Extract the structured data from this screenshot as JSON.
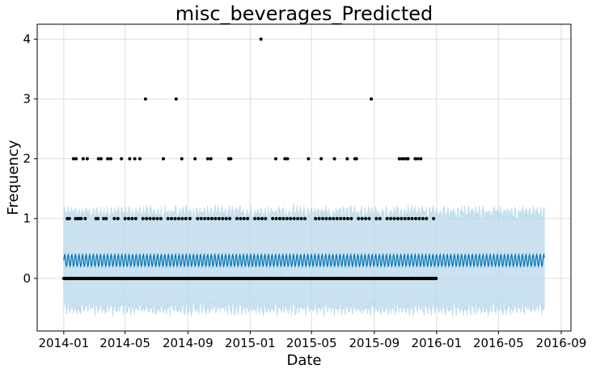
{
  "chart_data": {
    "type": "scatter",
    "title": "misc_beverages_Predicted",
    "xlabel": "Date",
    "ylabel": "Frequency",
    "x_range": [
      "2013-11-10",
      "2016-09-20"
    ],
    "ylim": [
      -0.88,
      4.25
    ],
    "grid": true,
    "x_ticks": [
      "2014-01",
      "2014-05",
      "2014-09",
      "2015-01",
      "2015-05",
      "2015-09",
      "2016-01",
      "2016-05",
      "2016-09"
    ],
    "y_ticks": [
      "0",
      "1",
      "2",
      "3",
      "4"
    ],
    "forecast": {
      "x_start": "2014-01-01",
      "x_end": "2016-07-30",
      "yhat_center": 0.3,
      "yhat_weekly_amplitude": 0.1,
      "upper_center": 1.1,
      "lower_center": -0.5,
      "line_color": "#0072B2",
      "band_color": "#B8D8EA"
    },
    "observations": {
      "x_start": "2014-01-01",
      "x_end": "2015-12-31",
      "point_color": "#000000",
      "zero_count_days": "every day from 2014-01-01 to 2015-12-31 not listed below",
      "value_1_dates": [
        "2014-01-08",
        "2014-01-12",
        "2014-01-20",
        "2014-01-24",
        "2014-01-28",
        "2014-02-01",
        "2014-02-04",
        "2014-02-08",
        "2014-02-12",
        "2014-02-16",
        "2014-03-05",
        "2014-03-09",
        "2014-03-15",
        "2014-03-20",
        "2014-03-25",
        "2014-04-03",
        "2014-04-10",
        "2014-04-17",
        "2014-04-24",
        "2014-05-01",
        "2014-05-08",
        "2014-05-15",
        "2014-05-22",
        "2014-06-05",
        "2014-06-12",
        "2014-06-19",
        "2014-06-26",
        "2014-07-03",
        "2014-07-10",
        "2014-07-24",
        "2014-07-31",
        "2014-08-07",
        "2014-08-14",
        "2014-08-21",
        "2014-08-28",
        "2014-09-05",
        "2014-09-20",
        "2014-09-27",
        "2014-10-04",
        "2014-10-11",
        "2014-10-18",
        "2014-10-25",
        "2014-11-01",
        "2014-11-08",
        "2014-11-15",
        "2014-11-22",
        "2014-12-06",
        "2014-12-13",
        "2014-12-20",
        "2014-12-27",
        "2015-01-10",
        "2015-01-17",
        "2015-01-24",
        "2015-01-31",
        "2015-02-14",
        "2015-02-21",
        "2015-02-28",
        "2015-03-07",
        "2015-03-14",
        "2015-03-21",
        "2015-03-28",
        "2015-04-04",
        "2015-04-11",
        "2015-04-18",
        "2015-04-25",
        "2015-05-09",
        "2015-05-16",
        "2015-05-23",
        "2015-05-30",
        "2015-06-06",
        "2015-06-13",
        "2015-06-20",
        "2015-06-27",
        "2015-07-04",
        "2015-07-11",
        "2015-07-18",
        "2015-07-25",
        "2015-08-01",
        "2015-08-08",
        "2015-08-15",
        "2015-08-22",
        "2015-09-05",
        "2015-09-12",
        "2015-09-26",
        "2015-10-03",
        "2015-10-10",
        "2015-10-17",
        "2015-10-24",
        "2015-10-31",
        "2015-11-07",
        "2015-11-14",
        "2015-11-21",
        "2015-11-28",
        "2015-12-05",
        "2015-12-12",
        "2015-12-26"
      ],
      "value_2_dates": [
        "2014-01-20",
        "2014-01-25",
        "2014-02-08",
        "2014-02-16",
        "2014-03-10",
        "2014-03-15",
        "2014-03-28",
        "2014-04-03",
        "2014-04-24",
        "2014-05-10",
        "2014-05-20",
        "2014-05-30",
        "2014-06-10",
        "2014-07-15",
        "2014-08-20",
        "2014-09-15",
        "2014-10-10",
        "2014-10-16",
        "2014-11-20",
        "2014-11-24",
        "2015-02-20",
        "2015-03-10",
        "2015-03-15",
        "2015-04-25",
        "2015-05-20",
        "2015-06-15",
        "2015-07-10",
        "2015-07-25",
        "2015-07-28",
        "2015-10-20",
        "2015-10-25",
        "2015-10-30",
        "2015-11-04",
        "2015-11-06",
        "2015-11-20",
        "2015-11-25",
        "2015-12-01"
      ],
      "value_3_dates": [
        "2014-06-10",
        "2014-08-09",
        "2015-08-26"
      ],
      "value_4_dates": [
        "2015-01-22"
      ]
    }
  }
}
